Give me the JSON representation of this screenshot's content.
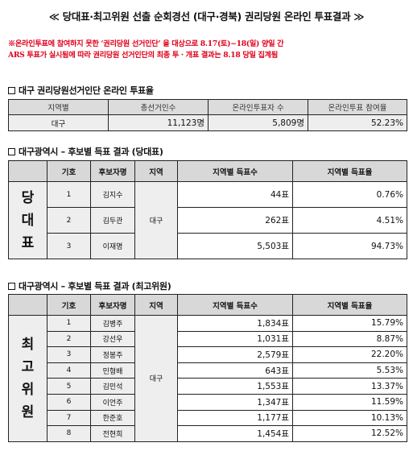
{
  "title": "≪ 당대표·최고위원 선출 순회경선 (대구·경북) 권리당원 온라인 투표결과 ≫",
  "notice": [
    "※온라인투표에 참여하지 못한 ‘권리당원 선거인단’ 을 대상으로 8.17(토)~18(일) 양일 간",
    "ARS 투표가 실시됨에 따라 권리당원 선거인단의 최종 투 · 개표 결과는 8.18 당일 집계됨"
  ],
  "section1": {
    "heading": "대구 권리당원선거인단 온라인 투표율",
    "headers": [
      "지역별",
      "총선거인수",
      "온라인투표자 수",
      "온라인투표 참여율"
    ],
    "row": [
      "대구",
      "11,123명",
      "5,809명",
      "52.23%"
    ]
  },
  "section2": {
    "heading": "대구광역시 – 후보별 득표 결과 (당대표)",
    "headers": [
      "",
      "기호",
      "후보자명",
      "지역",
      "지역별 득표수",
      "지역별 득표율"
    ],
    "group_label": [
      "당",
      "대",
      "표"
    ],
    "region": "대구",
    "rows": [
      {
        "no": "1",
        "name": "김지수",
        "votes": "44표",
        "rate": "0.76%"
      },
      {
        "no": "2",
        "name": "김두관",
        "votes": "262표",
        "rate": "4.51%"
      },
      {
        "no": "3",
        "name": "이재명",
        "votes": "5,503표",
        "rate": "94.73%"
      }
    ]
  },
  "section3": {
    "heading": "대구광역시 – 후보별 득표 결과 (최고위원)",
    "headers": [
      "",
      "기호",
      "후보자명",
      "지역",
      "지역별 득표수",
      "지역별 득표율"
    ],
    "group_label": [
      "최",
      "고",
      "위",
      "원"
    ],
    "region": "대구",
    "rows": [
      {
        "no": "1",
        "name": "김병주",
        "votes": "1,834표",
        "rate": "15.79%"
      },
      {
        "no": "2",
        "name": "강선우",
        "votes": "1,031표",
        "rate": "8.87%"
      },
      {
        "no": "3",
        "name": "정봉주",
        "votes": "2,579표",
        "rate": "22.20%"
      },
      {
        "no": "4",
        "name": "민형배",
        "votes": "643표",
        "rate": "5.53%"
      },
      {
        "no": "5",
        "name": "김민석",
        "votes": "1,553표",
        "rate": "13.37%"
      },
      {
        "no": "6",
        "name": "이언주",
        "votes": "1,347표",
        "rate": "11.59%"
      },
      {
        "no": "7",
        "name": "한준호",
        "votes": "1,177표",
        "rate": "10.13%"
      },
      {
        "no": "8",
        "name": "전현희",
        "votes": "1,454표",
        "rate": "12.52%"
      }
    ]
  }
}
